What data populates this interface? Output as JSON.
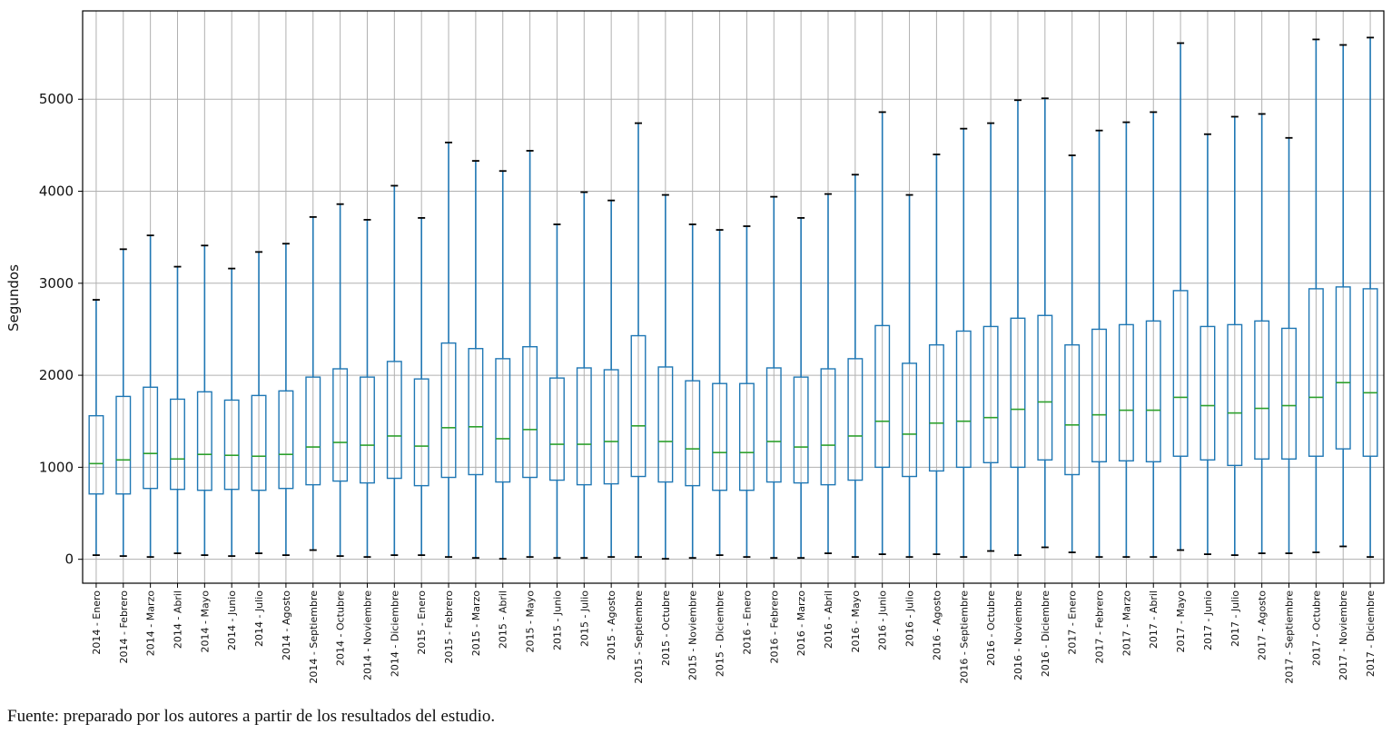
{
  "chart_data": {
    "type": "box",
    "ylabel": "Segundos",
    "ylim": [
      -260,
      5960
    ],
    "yticks": [
      0,
      1000,
      2000,
      3000,
      4000,
      5000
    ],
    "grid": true,
    "colors": {
      "box": "#1f77b4",
      "median": "#2ca02c",
      "whisker": "#1f77b4",
      "cap": "#000000",
      "grid": "#b0b0b0"
    },
    "categories": [
      "2014 - Enero",
      "2014 - Febrero",
      "2014 - Marzo",
      "2014 - Abril",
      "2014 - Mayo",
      "2014 - Junio",
      "2014 - Julio",
      "2014 - Agosto",
      "2014 - Septiembre",
      "2014 - Octubre",
      "2014 - Noviembre",
      "2014 - Diciembre",
      "2015 - Enero",
      "2015 - Febrero",
      "2015 - Marzo",
      "2015 - Abril",
      "2015 - Mayo",
      "2015 - Junio",
      "2015 - Julio",
      "2015 - Agosto",
      "2015 - Septiembre",
      "2015 - Octubre",
      "2015 - Noviembre",
      "2015 - Diciembre",
      "2016 - Enero",
      "2016 - Febrero",
      "2016 - Marzo",
      "2016 - Abril",
      "2016 - Mayo",
      "2016 - Junio",
      "2016 - Julio",
      "2016 - Agosto",
      "2016 - Septiembre",
      "2016 - Octubre",
      "2016 - Noviembre",
      "2016 - Diciembre",
      "2017 - Enero",
      "2017 - Febrero",
      "2017 - Marzo",
      "2017 - Abril",
      "2017 - Mayo",
      "2017 - Junio",
      "2017 - Julio",
      "2017 - Agosto",
      "2017 - Septiembre",
      "2017 - Octubre",
      "2017 - Noviembre",
      "2017 - Diciembre"
    ],
    "whisker_low": [
      45,
      35,
      25,
      65,
      45,
      35,
      65,
      45,
      100,
      35,
      25,
      45,
      45,
      25,
      15,
      5,
      25,
      15,
      15,
      25,
      25,
      5,
      15,
      45,
      25,
      15,
      15,
      65,
      25,
      55,
      25,
      55,
      25,
      90,
      45,
      130,
      75,
      25,
      25,
      25,
      100,
      55,
      45,
      65,
      65,
      75,
      140,
      25
    ],
    "q1": [
      710,
      710,
      770,
      760,
      750,
      760,
      750,
      770,
      810,
      850,
      830,
      880,
      800,
      890,
      920,
      840,
      890,
      860,
      810,
      820,
      900,
      840,
      800,
      750,
      750,
      840,
      830,
      810,
      860,
      1000,
      900,
      960,
      1000,
      1050,
      1000,
      1080,
      920,
      1060,
      1070,
      1060,
      1120,
      1080,
      1020,
      1090,
      1090,
      1120,
      1200,
      1120
    ],
    "median": [
      1040,
      1080,
      1150,
      1090,
      1140,
      1130,
      1120,
      1140,
      1220,
      1270,
      1240,
      1340,
      1230,
      1430,
      1440,
      1310,
      1410,
      1250,
      1250,
      1280,
      1450,
      1280,
      1200,
      1160,
      1160,
      1280,
      1220,
      1240,
      1340,
      1500,
      1360,
      1480,
      1500,
      1540,
      1630,
      1710,
      1460,
      1570,
      1620,
      1620,
      1760,
      1670,
      1590,
      1640,
      1670,
      1760,
      1920,
      1810
    ],
    "q3": [
      1560,
      1770,
      1870,
      1740,
      1820,
      1730,
      1780,
      1830,
      1980,
      2070,
      1980,
      2150,
      1960,
      2350,
      2290,
      2180,
      2310,
      1970,
      2080,
      2060,
      2430,
      2090,
      1940,
      1910,
      1910,
      2080,
      1980,
      2070,
      2180,
      2540,
      2130,
      2330,
      2480,
      2530,
      2620,
      2650,
      2330,
      2500,
      2550,
      2590,
      2920,
      2530,
      2550,
      2590,
      2510,
      2940,
      2960,
      2940
    ],
    "whisker_high": [
      2820,
      3370,
      3520,
      3180,
      3410,
      3160,
      3340,
      3430,
      3720,
      3860,
      3690,
      4060,
      3710,
      4530,
      4330,
      4220,
      4440,
      3640,
      3990,
      3900,
      4740,
      3960,
      3640,
      3580,
      3620,
      3940,
      3710,
      3970,
      4180,
      4860,
      3960,
      4400,
      4680,
      4740,
      4990,
      5010,
      4390,
      4660,
      4750,
      4860,
      5610,
      4620,
      4810,
      4840,
      4580,
      5650,
      5590,
      5670
    ]
  },
  "source_note": "Fuente: preparado por los autores a partir de los resultados del estudio."
}
